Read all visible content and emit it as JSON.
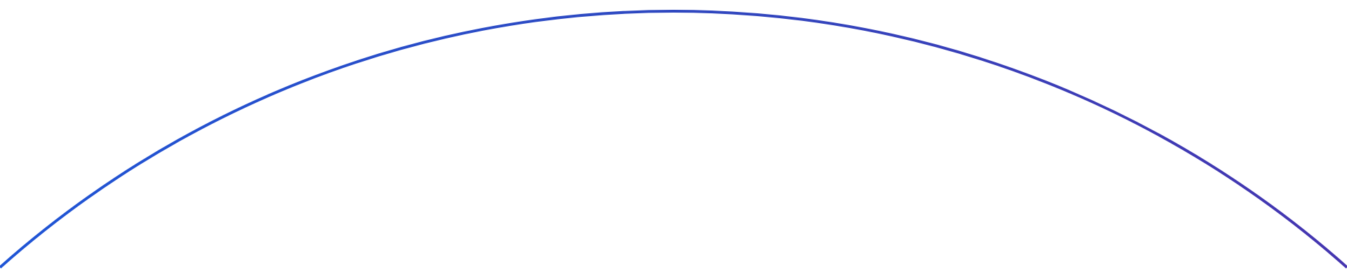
{
  "decoration": {
    "shape": "arc",
    "stroke_start_color": "#1f55d6",
    "stroke_mid_color": "#2f48c0",
    "stroke_end_color": "#4535b0",
    "background_color": "#ffffff"
  }
}
